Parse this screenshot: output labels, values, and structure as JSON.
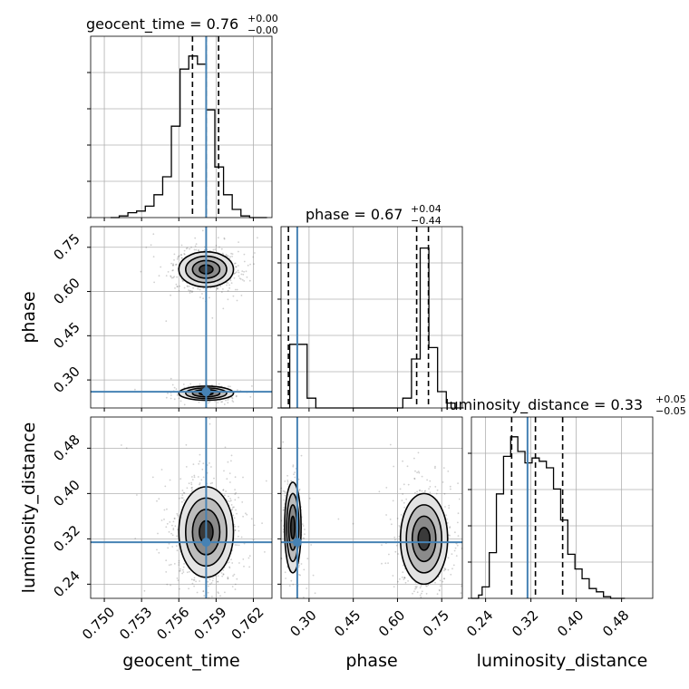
{
  "chart_data": {
    "type": "corner",
    "parameters": [
      "geocent_time",
      "phase",
      "luminosity_distance"
    ],
    "truths": {
      "geocent_time": 0.7582,
      "phase": 0.26,
      "luminosity_distance": 0.314
    },
    "grid": true,
    "colors": {
      "truth": "#4682b4",
      "hist": "#000000",
      "density": "#000000",
      "grid": "#b0b0b0"
    },
    "panels": [
      {
        "id": "geocent_time-hist",
        "param": "geocent_time",
        "title": "geocent_time = 0.76",
        "median": 0.76,
        "err_plus": "+0.00",
        "err_minus": "−0.00",
        "xlim": [
          0.7489,
          0.7635
        ],
        "quantiles": [
          0.7571,
          0.7582,
          0.7592
        ],
        "bins_left": [
          0.7505,
          0.7512,
          0.7519,
          0.7526,
          0.7533,
          0.754,
          0.7547,
          0.7554,
          0.7561,
          0.7568,
          0.7575,
          0.7582,
          0.7589,
          0.7596,
          0.7603,
          0.761,
          0.7617,
          0.7624
        ],
        "bin_width": 0.0007,
        "counts": [
          0.0,
          0.01,
          0.03,
          0.04,
          0.07,
          0.14,
          0.25,
          0.56,
          0.91,
          0.99,
          0.94,
          0.66,
          0.31,
          0.14,
          0.05,
          0.01,
          0.0,
          0.0
        ],
        "ticks": [
          0.75,
          0.753,
          0.756,
          0.759,
          0.762
        ],
        "tick_labels": [
          "0.750",
          "0.753",
          "0.756",
          "0.759",
          "0.762"
        ]
      },
      {
        "id": "phase-hist",
        "param": "phase",
        "title": "phase = 0.67",
        "median": 0.67,
        "err_plus": "+0.04",
        "err_minus": "−0.44",
        "xlim": [
          0.205,
          0.82
        ],
        "quantiles": [
          0.23,
          0.665,
          0.705
        ],
        "bins_left": [
          0.205,
          0.2345,
          0.264,
          0.2935,
          0.323,
          0.3525,
          0.382,
          0.4115,
          0.441,
          0.4705,
          0.5,
          0.5295,
          0.559,
          0.5885,
          0.618,
          0.6475,
          0.677,
          0.7065,
          0.736,
          0.7655,
          0.795
        ],
        "bin_width": 0.0295,
        "counts": [
          0.0,
          0.39,
          0.39,
          0.06,
          0.0,
          0.0,
          0.0,
          0.0,
          0.0,
          0.0,
          0.0,
          0.0,
          0.0,
          0.0,
          0.06,
          0.3,
          0.98,
          0.37,
          0.1,
          0.03,
          0.0
        ],
        "ticks": [
          0.3,
          0.45,
          0.6,
          0.75
        ],
        "tick_labels": [
          "0.30",
          "0.45",
          "0.60",
          "0.75"
        ]
      },
      {
        "id": "luminosity_distance-hist",
        "param": "luminosity_distance",
        "title": "luminosity_distance = 0.33",
        "median": 0.33,
        "err_plus": "+0.05",
        "err_minus": "−0.05",
        "xlim": [
          0.215,
          0.535
        ],
        "quantiles": [
          0.286,
          0.328,
          0.376
        ],
        "bins_left": [
          0.215,
          0.2213,
          0.2276,
          0.2339,
          0.2402,
          0.2465,
          0.2528,
          0.2591,
          0.2654,
          0.2717,
          0.278,
          0.2843,
          0.2906,
          0.2969,
          0.3032,
          0.3095,
          0.3158,
          0.3221,
          0.3284,
          0.3347,
          0.341,
          0.3473,
          0.3536,
          0.3599,
          0.3662,
          0.3725,
          0.3788,
          0.3851,
          0.3914,
          0.3977,
          0.404,
          0.4103,
          0.4166,
          0.4229,
          0.4292,
          0.4355,
          0.4418,
          0.4481,
          0.4544,
          0.4607,
          0.467,
          0.4733,
          0.4796
        ],
        "bin_width": 0.0063,
        "counts": [
          0.0,
          0.0,
          0.02,
          0.07,
          0.07,
          0.28,
          0.28,
          0.64,
          0.64,
          0.87,
          0.87,
          0.99,
          0.99,
          0.9,
          0.9,
          0.83,
          0.83,
          0.86,
          0.86,
          0.84,
          0.84,
          0.8,
          0.8,
          0.67,
          0.67,
          0.48,
          0.48,
          0.27,
          0.27,
          0.18,
          0.18,
          0.12,
          0.12,
          0.06,
          0.06,
          0.04,
          0.04,
          0.01,
          0.01,
          0.0,
          0.0,
          0.0,
          0.0
        ],
        "ticks": [
          0.24,
          0.32,
          0.4,
          0.48
        ],
        "tick_labels": [
          "0.24",
          "0.32",
          "0.40",
          "0.48"
        ]
      }
    ],
    "scatter_panels": [
      {
        "id": "phase-vs-geocent_time",
        "x_param": "geocent_time",
        "y_param": "phase",
        "xlim": [
          0.7489,
          0.7635
        ],
        "ylim": [
          0.205,
          0.82
        ],
        "y_ticks": [
          0.3,
          0.45,
          0.6,
          0.75
        ],
        "y_tick_labels": [
          "0.30",
          "0.45",
          "0.60",
          "0.75"
        ],
        "clusters": [
          {
            "x": 0.7582,
            "y": 0.675,
            "sx": 0.0011,
            "sy": 0.03,
            "weight": 0.7
          },
          {
            "x": 0.7582,
            "y": 0.255,
            "sx": 0.0011,
            "sy": 0.012,
            "weight": 0.3
          }
        ]
      },
      {
        "id": "luminosity_distance-vs-geocent_time",
        "x_param": "geocent_time",
        "y_param": "luminosity_distance",
        "xlim": [
          0.7489,
          0.7635
        ],
        "ylim": [
          0.215,
          0.535
        ],
        "y_ticks": [
          0.24,
          0.32,
          0.4,
          0.48
        ],
        "y_tick_labels": [
          "0.24",
          "0.32",
          "0.40",
          "0.48"
        ],
        "clusters": [
          {
            "x": 0.7582,
            "y": 0.332,
            "sx": 0.0011,
            "sy": 0.04,
            "weight": 1.0
          }
        ]
      },
      {
        "id": "luminosity_distance-vs-phase",
        "x_param": "phase",
        "y_param": "luminosity_distance",
        "xlim": [
          0.205,
          0.82
        ],
        "ylim": [
          0.215,
          0.535
        ],
        "clusters": [
          {
            "x": 0.245,
            "y": 0.34,
            "sx": 0.014,
            "sy": 0.04,
            "weight": 0.3
          },
          {
            "x": 0.69,
            "y": 0.32,
            "sx": 0.04,
            "sy": 0.04,
            "weight": 0.7
          }
        ]
      }
    ],
    "axis_labels": {
      "x": [
        "geocent_time",
        "phase",
        "luminosity_distance"
      ],
      "y": [
        "phase",
        "luminosity_distance"
      ]
    }
  }
}
